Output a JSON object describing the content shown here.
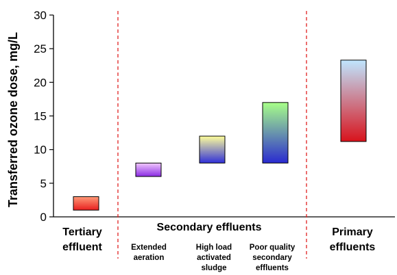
{
  "chart_data": {
    "type": "bar",
    "ylabel": "Transferred ozone dose, mg/L",
    "ylim": [
      0,
      30
    ],
    "yticks": [
      0,
      5,
      10,
      15,
      20,
      25,
      30
    ],
    "grid": false,
    "groups": [
      {
        "label": [
          "Tertiary",
          "effluent"
        ]
      },
      {
        "label": [
          "Secondary effluents"
        ]
      },
      {
        "label": [
          "Primary",
          "effluents"
        ]
      }
    ],
    "subcategories": [
      {
        "label": [
          "Extended",
          "aeration"
        ]
      },
      {
        "label": [
          "High load",
          "activated",
          "sludge"
        ]
      },
      {
        "label": [
          "Poor quality",
          "secondary",
          "effluents"
        ]
      }
    ],
    "bars": [
      {
        "category": "Tertiary effluent",
        "low": 1,
        "high": 3,
        "gradient": [
          "#ff9a78",
          "#e81f1f"
        ]
      },
      {
        "category": "Extended aeration",
        "low": 6,
        "high": 8,
        "gradient": [
          "#f2c8ff",
          "#8a2be2"
        ]
      },
      {
        "category": "High load activated sludge",
        "low": 8,
        "high": 12,
        "gradient": [
          "#ffff9a",
          "#3030d8"
        ]
      },
      {
        "category": "Poor quality secondary effluents",
        "low": 8,
        "high": 17,
        "gradient": [
          "#a8ff88",
          "#2a2ad0"
        ]
      },
      {
        "category": "Primary effluents",
        "low": 11.2,
        "high": 23.3,
        "gradient": [
          "#bfe6ff",
          "#d8131c"
        ]
      }
    ],
    "divider_color": "#e02020"
  }
}
